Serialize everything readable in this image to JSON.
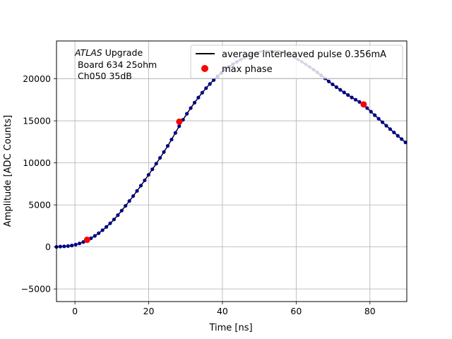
{
  "chart_data": {
    "type": "scatter",
    "xlabel": "Time [ns]",
    "ylabel": "Amplitude [ADC Counts]",
    "xlim": [
      -5,
      90
    ],
    "ylim": [
      -6500,
      24500
    ],
    "xticks": [
      "0",
      "20",
      "40",
      "60",
      "80"
    ],
    "xtick_values": [
      0,
      20,
      40,
      60,
      80
    ],
    "yticks": [
      "−5000",
      "0",
      "5000",
      "10000",
      "15000",
      "20000"
    ],
    "ytick_values": [
      -5000,
      0,
      5000,
      10000,
      15000,
      20000
    ],
    "grid": true,
    "legend_position": "top-right",
    "annotation": {
      "atlas": "ATLAS",
      "upgrade": " Upgrade",
      "line2": " Board 634 25ohm",
      "line3": " Ch050 35dB"
    },
    "legend": {
      "line_label": "average interleaved pulse 0.356mA",
      "marker_label": "max phase"
    },
    "colors": {
      "pulse": "#00008b",
      "line": "#000000",
      "max_phase": "#ff0000",
      "grid": "#b0b0b0"
    },
    "pulse_curve": {
      "x": [
        -5,
        0,
        5,
        10,
        15,
        20,
        25,
        30,
        35,
        40,
        45,
        50,
        53,
        55,
        60,
        65,
        70,
        75,
        78,
        80,
        85,
        90
      ],
      "y": [
        0,
        250,
        1200,
        3000,
        5600,
        8600,
        11900,
        15600,
        18600,
        20800,
        22300,
        23200,
        23300,
        23300,
        22400,
        21000,
        19300,
        17800,
        17000,
        16200,
        14200,
        12300
      ]
    },
    "max_phase": {
      "x": [
        3.3,
        28.3,
        78.3
      ],
      "y": [
        850,
        14900,
        16950
      ]
    }
  }
}
